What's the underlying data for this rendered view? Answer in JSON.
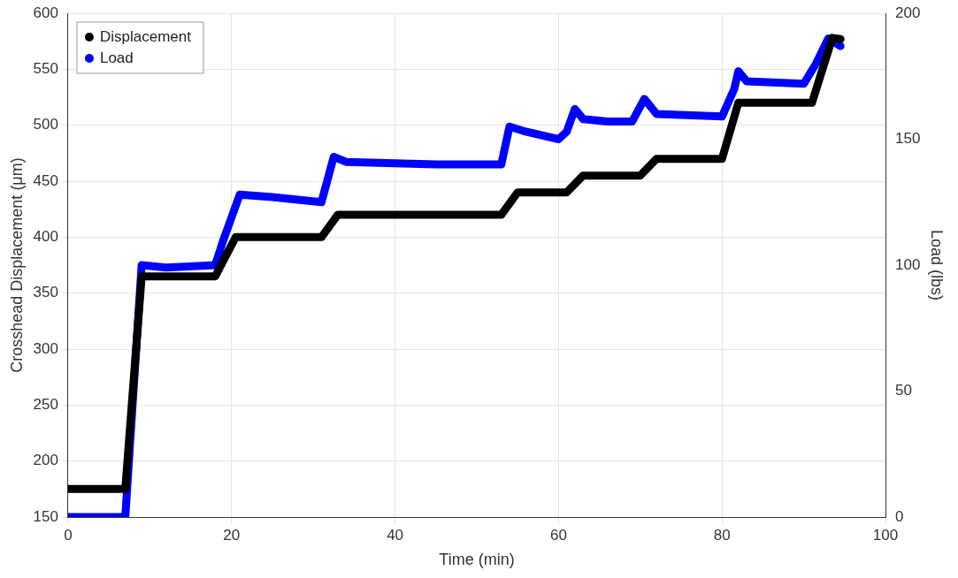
{
  "chart_data": {
    "type": "line",
    "xlabel": "Time (min)",
    "ylabel": "Crosshead Displacement (μm)",
    "y2label": "Load (lbs)",
    "xlim": [
      0,
      100
    ],
    "xticks": [
      0,
      20,
      40,
      60,
      80,
      100
    ],
    "ylim": [
      150,
      600
    ],
    "yticks": [
      150,
      200,
      250,
      300,
      350,
      400,
      450,
      500,
      550,
      600
    ],
    "y2lim": [
      0,
      200
    ],
    "y2ticks": [
      0,
      50,
      100,
      150,
      200
    ],
    "grid": true,
    "legend": "top left",
    "line_style": "solid",
    "series": [
      {
        "name": "Displacement",
        "color": "#000000",
        "x": [
          0,
          7,
          9,
          18,
          20.5,
          31,
          33,
          53,
          55,
          61,
          63,
          70,
          72,
          80,
          82,
          91,
          93.5,
          94.5
        ],
        "values": [
          175,
          175,
          365,
          365,
          400,
          400,
          420,
          420,
          440,
          440,
          455,
          455,
          470,
          470,
          520,
          520,
          578,
          577
        ]
      },
      {
        "name": "Load",
        "color": "#0000ff",
        "axis": "y2",
        "x": [
          0,
          7,
          9,
          12,
          18,
          19,
          21,
          25,
          31,
          32.5,
          34,
          45,
          53,
          54,
          56,
          60,
          61,
          62,
          63,
          66,
          69,
          70.5,
          72,
          80,
          81.5,
          82,
          83,
          90,
          91.5,
          93,
          94.5
        ],
        "values": [
          0,
          0,
          100,
          99,
          100,
          110,
          128,
          127,
          125,
          143,
          141,
          140,
          140,
          155,
          153,
          150,
          153,
          162,
          158,
          157,
          157,
          166,
          160,
          159,
          170,
          177,
          173,
          172,
          180,
          190,
          187
        ]
      }
    ]
  }
}
